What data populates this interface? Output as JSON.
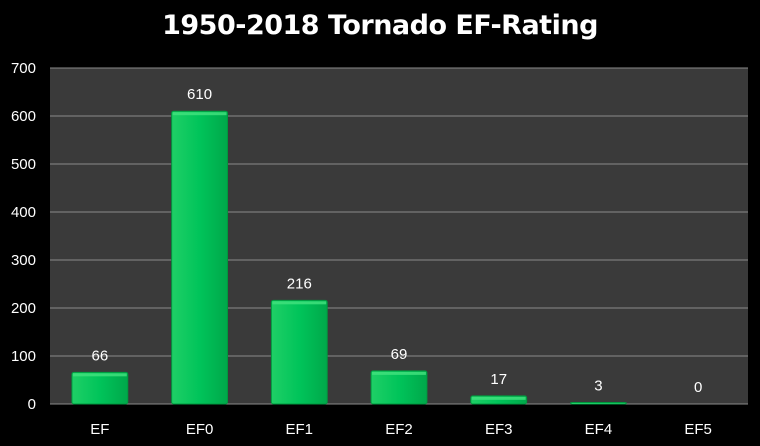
{
  "chart_data": {
    "type": "bar",
    "title": "1950-2018 Tornado EF-Rating",
    "categories": [
      "EF",
      "EF0",
      "EF1",
      "EF2",
      "EF3",
      "EF4",
      "EF5"
    ],
    "values": [
      66,
      610,
      216,
      69,
      17,
      3,
      0
    ],
    "data_labels": [
      "66",
      "610",
      "216",
      "69",
      "17",
      "3",
      "0"
    ],
    "xlabel": "",
    "ylabel": "",
    "ylim": [
      0,
      700
    ],
    "yticks": [
      0,
      100,
      200,
      300,
      400,
      500,
      600,
      700
    ],
    "grid": true,
    "legend": "none"
  },
  "colors": {
    "background": "#000000",
    "plot_area": "#3a3a3a",
    "gridline": "#8a8a8a",
    "bar_fill": "#00b050",
    "bar_highlight": "#3fe07c",
    "text": "#ffffff"
  }
}
